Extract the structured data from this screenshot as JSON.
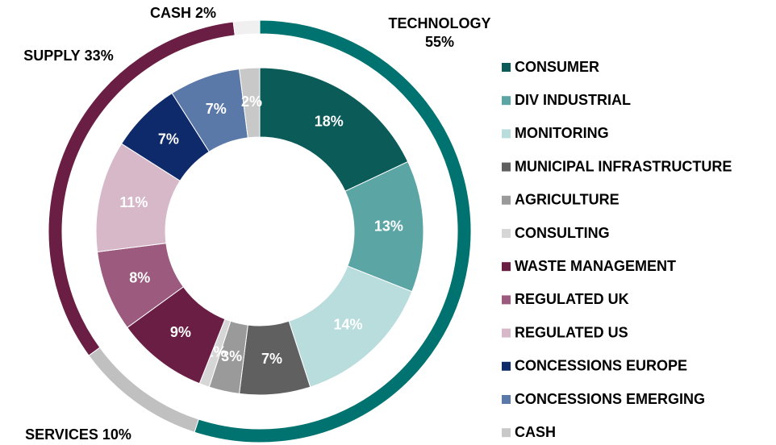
{
  "chart_data": {
    "type": "donut",
    "rings": [
      {
        "categories": [
          "TECHNOLOGY",
          "SERVICES",
          "SUPPLY",
          "CASH"
        ],
        "values": [
          55,
          10,
          33,
          2
        ],
        "value_labels": [
          "55%",
          "10%",
          "33%",
          "2%"
        ],
        "colors": [
          "#007370",
          "#c0c0c0",
          "#6b1e44",
          "#f0f0f0"
        ]
      },
      {
        "categories": [
          "CONSUMER",
          "DIV INDUSTRIAL",
          "MONITORING",
          "MUNICIPAL INFRASTRUCTURE",
          "AGRICULTURE",
          "CONSULTING",
          "WASTE MANAGEMENT",
          "REGULATED UK",
          "REGULATED US",
          "CONCESSIONS EUROPE",
          "CONCESSIONS EMERGING",
          "CASH"
        ],
        "values": [
          18,
          13,
          14,
          7,
          3,
          1,
          9,
          8,
          11,
          7,
          7,
          2
        ],
        "value_labels": [
          "18%",
          "13%",
          "14%",
          "7%",
          "3%",
          "1%",
          "9%",
          "8%",
          "11%",
          "7%",
          "7%",
          "2%"
        ],
        "colors": [
          "#0b5c58",
          "#5ba5a5",
          "#b9dcdc",
          "#606060",
          "#9a9a9a",
          "#d6d6d6",
          "#6b1e44",
          "#9c5a7e",
          "#d6b8c8",
          "#0f2a6b",
          "#5b79a8",
          "#c8c8c8"
        ]
      }
    ],
    "legend": "right"
  }
}
